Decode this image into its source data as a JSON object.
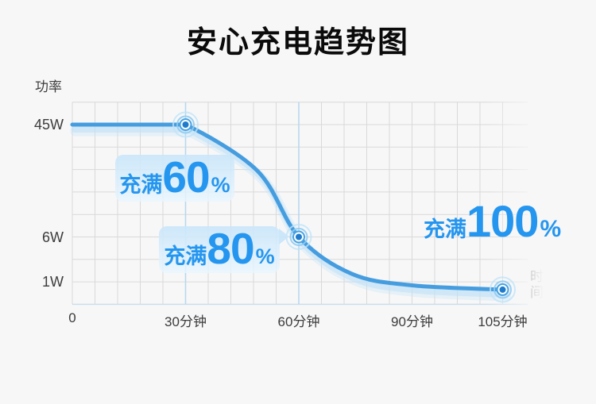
{
  "title": "安心充电趋势图",
  "labels": {
    "power_axis": "功率",
    "time_axis": "时\n间"
  },
  "colors": {
    "accent_blue": "#2596ef",
    "curve": "#459ddf",
    "curve_glow": "#c2e1f6",
    "grid": "#d9d9d9",
    "grid_highlight": "#b7d8ef",
    "grid_bottom": "#c9dded",
    "background": "#f7f7f8",
    "callout_bg": "#cbe6fa",
    "tick_text": "#3c3c3c",
    "title_text": "#0b0b0b"
  },
  "chart_data": {
    "type": "line",
    "title": "安心充电趋势图",
    "xlabel": "时间",
    "ylabel": "功率",
    "grid": true,
    "legend": "none",
    "x_axis_unit": "分钟",
    "x_range_minutes": [
      0,
      105
    ],
    "y_scale_note": "stylized non-linear power axis",
    "x_ticks": [
      {
        "t": 0,
        "label": "0"
      },
      {
        "t": 30,
        "label": "30分钟"
      },
      {
        "t": 60,
        "label": "60分钟"
      },
      {
        "t": 90,
        "label": "90分钟"
      },
      {
        "t": 105,
        "label": "105分钟"
      }
    ],
    "y_ticks": [
      {
        "p": 45,
        "label": "45W"
      },
      {
        "p": 6,
        "label": "6W"
      },
      {
        "p": 1,
        "label": "1W"
      }
    ],
    "series": [
      {
        "name": "功率",
        "points": [
          [
            0,
            45
          ],
          [
            30,
            45
          ],
          [
            49,
            29
          ],
          [
            60,
            6
          ],
          [
            74,
            1.9
          ],
          [
            90,
            0.8
          ],
          [
            105,
            0.55
          ]
        ]
      }
    ],
    "markers_at": [
      [
        30,
        45
      ],
      [
        60,
        6
      ],
      [
        105,
        0.55
      ]
    ],
    "annotations": [
      {
        "prefix": "充满",
        "value": "60",
        "suffix": "%",
        "at_minute": 30
      },
      {
        "prefix": "充满",
        "value": "80",
        "suffix": "%",
        "at_minute": 60
      },
      {
        "prefix": "充满",
        "value": "100",
        "suffix": "%",
        "at_minute": 105
      }
    ]
  }
}
